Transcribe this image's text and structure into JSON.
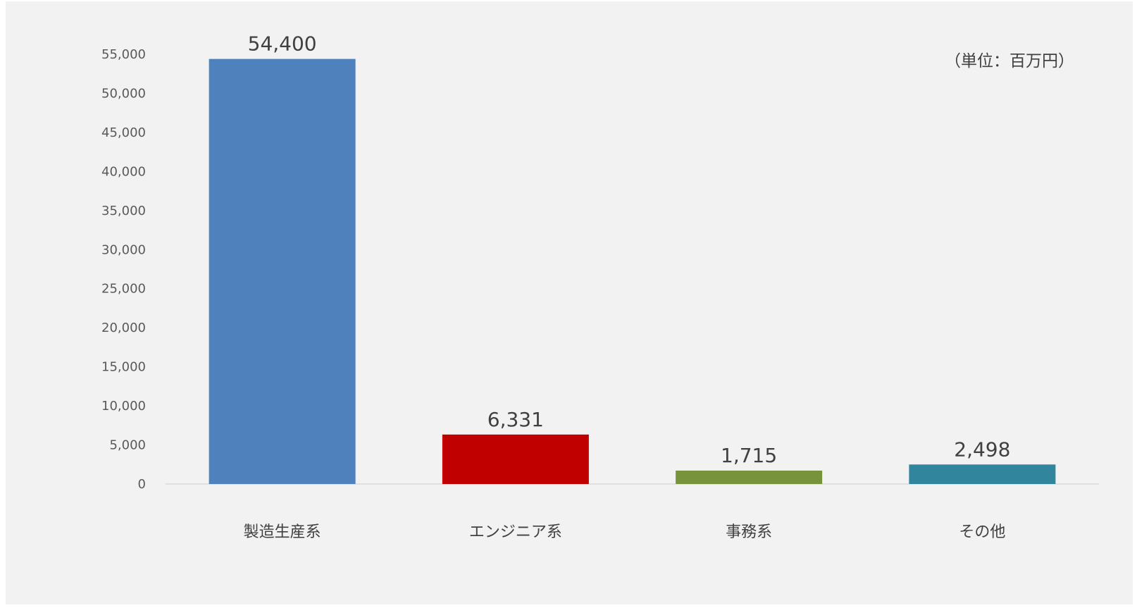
{
  "chart_data": {
    "type": "bar",
    "unit_note": "（単位：百万円）",
    "categories": [
      "製造生産系",
      "エンジニア系",
      "事務系",
      "その他"
    ],
    "values": [
      54400,
      6331,
      1715,
      2498
    ],
    "data_labels": [
      "54,400",
      "6,331",
      "1,715",
      "2,498"
    ],
    "bar_colors": [
      "#4f81bd",
      "#c00000",
      "#77933c",
      "#31859c"
    ],
    "yticks": [
      0,
      5000,
      10000,
      15000,
      20000,
      25000,
      30000,
      35000,
      40000,
      45000,
      50000,
      55000
    ],
    "ytick_labels": [
      "0",
      "5,000",
      "10,000",
      "15,000",
      "20,000",
      "25,000",
      "30,000",
      "35,000",
      "40,000",
      "45,000",
      "50,000",
      "55,000"
    ],
    "ylim": [
      0,
      55000
    ],
    "grid": false,
    "legend": "none"
  }
}
